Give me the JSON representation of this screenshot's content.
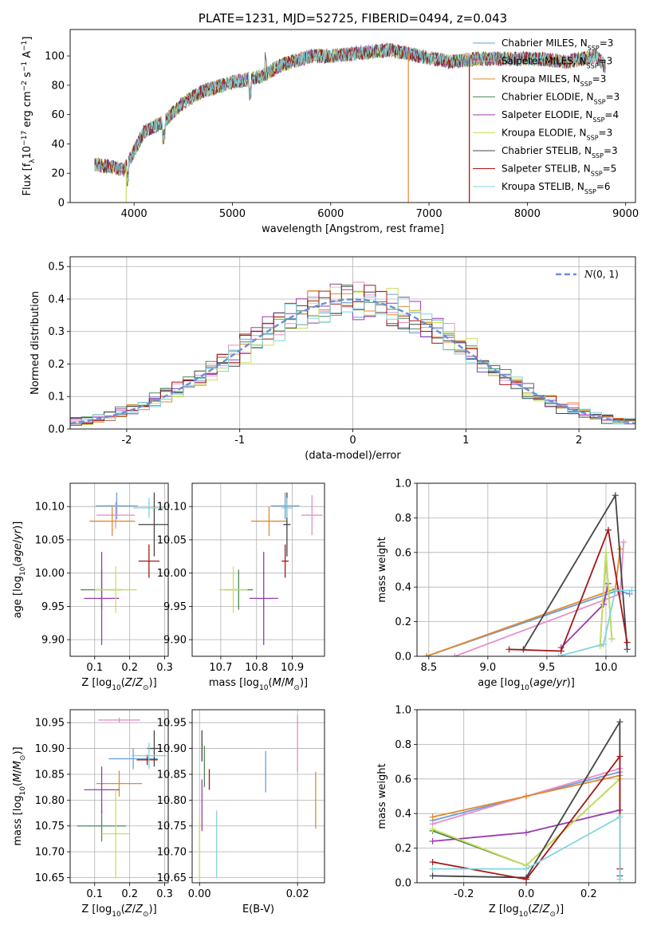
{
  "colors": [
    "#6a9cdc",
    "#e88fc7",
    "#e08a2e",
    "#4f8a55",
    "#9b39b0",
    "#c8e05a",
    "#444444",
    "#a31818",
    "#7fd5dd"
  ],
  "chart_data": [
    {
      "id": "spectrum",
      "type": "line",
      "title": "PLATE=1231, MJD=52725, FIBERID=0494, z=0.043",
      "xlabel": "wavelength [Angstrom, rest frame]",
      "ylabel": "Flux [f",
      "xlim": [
        3350,
        9100
      ],
      "ylim": [
        0,
        118
      ],
      "xticks": [
        4000,
        5000,
        6000,
        7000,
        8000,
        9000
      ],
      "yticks": [
        0,
        20,
        40,
        60,
        80,
        100
      ],
      "legend": "top-right",
      "series": [
        {
          "name": "Chabrier MILES, N",
          "ssp": "3"
        },
        {
          "name": "Salpeter MILES, N",
          "ssp": "3"
        },
        {
          "name": "Kroupa MILES, N",
          "ssp": "3"
        },
        {
          "name": "Chabrier ELODIE, N",
          "ssp": "3"
        },
        {
          "name": "Salpeter ELODIE, N",
          "ssp": "4"
        },
        {
          "name": "Kroupa ELODIE, N",
          "ssp": "3"
        },
        {
          "name": "Chabrier STELIB, N",
          "ssp": "3"
        },
        {
          "name": "Salpeter STELIB, N",
          "ssp": "5"
        },
        {
          "name": "Kroupa STELIB, N",
          "ssp": "6"
        }
      ],
      "continuum": {
        "x": [
          3600,
          3800,
          3900,
          4000,
          4100,
          4300,
          4500,
          4700,
          5000,
          5300,
          5500,
          5800,
          6000,
          6300,
          6600,
          6900,
          7200,
          7500,
          7800,
          8100,
          8400,
          8700,
          8800
        ],
        "y": [
          26,
          24,
          22,
          35,
          48,
          55,
          68,
          76,
          82,
          86,
          94,
          100,
          100,
          102,
          104,
          100,
          96,
          98,
          98,
          98,
          96,
          100,
          92
        ]
      },
      "line_drops": [
        {
          "series": 5,
          "x": 3920,
          "ymin": 0
        },
        {
          "series": 2,
          "x": 6790,
          "ymin": 0
        },
        {
          "series": 2,
          "x": 7410,
          "ymin": 0
        },
        {
          "series": 7,
          "x": 7410,
          "ymin": 0
        }
      ]
    },
    {
      "id": "residuals",
      "type": "histogram",
      "xlabel": "(data-model)/error",
      "ylabel": "Normed distribution",
      "xlim": [
        -2.5,
        2.5
      ],
      "ylim": [
        0,
        0.53
      ],
      "xticks": [
        -2,
        -1,
        0,
        1,
        2
      ],
      "yticks": [
        0.0,
        0.1,
        0.2,
        0.3,
        0.4,
        0.5
      ],
      "grid": true,
      "legend": "top-right",
      "reference": {
        "name": "N(0,1)",
        "label": "(0, 1)",
        "mu": 0,
        "sigma": 1
      },
      "bin_width": 0.1
    },
    {
      "id": "age-vs-z",
      "type": "scatter",
      "xlabel": "Z [log",
      "ylabel": "age  [log",
      "xlim": [
        0.03,
        0.31
      ],
      "ylim": [
        9.875,
        10.135
      ],
      "xticks": [
        0.1,
        0.2,
        0.3
      ],
      "yticks": [
        9.9,
        9.95,
        10.0,
        10.05,
        10.1
      ],
      "points": [
        {
          "x": 0.163,
          "y": 10.101,
          "xerr": 0.06,
          "yerr": 0.02
        },
        {
          "x": 0.16,
          "y": 10.087,
          "xerr": 0.055,
          "yerr": 0.02
        },
        {
          "x": 0.15,
          "y": 10.078,
          "xerr": 0.065,
          "yerr": 0.022
        },
        {
          "x": 0.12,
          "y": 9.975,
          "xerr": 0.06,
          "yerr": 0.03
        },
        {
          "x": 0.12,
          "y": 9.962,
          "xerr": 0.05,
          "yerr": 0.07
        },
        {
          "x": 0.16,
          "y": 9.975,
          "xerr": 0.06,
          "yerr": 0.035
        },
        {
          "x": 0.27,
          "y": 10.073,
          "xerr": 0.045,
          "yerr": 0.048
        },
        {
          "x": 0.255,
          "y": 10.018,
          "xerr": 0.03,
          "yerr": 0.025
        },
        {
          "x": 0.255,
          "y": 10.098,
          "xerr": 0.045,
          "yerr": 0.015
        }
      ]
    },
    {
      "id": "age-vs-mass",
      "type": "scatter",
      "xlabel": "mass [log",
      "ylabel": "",
      "xlim": [
        10.62,
        10.99
      ],
      "ylim": [
        9.875,
        10.135
      ],
      "xticks": [
        10.7,
        10.8,
        10.9
      ],
      "yticks": [
        9.9,
        9.95,
        10.0,
        10.05,
        10.1
      ],
      "points": [
        {
          "x": 10.88,
          "y": 10.101,
          "xerr": 0.04,
          "yerr": 0.02
        },
        {
          "x": 10.955,
          "y": 10.087,
          "xerr": 0.03,
          "yerr": 0.03
        },
        {
          "x": 10.835,
          "y": 10.078,
          "xerr": 0.05,
          "yerr": 0.022
        },
        {
          "x": 10.75,
          "y": 9.975,
          "xerr": 0.04,
          "yerr": 0.03
        },
        {
          "x": 10.82,
          "y": 9.962,
          "xerr": 0.04,
          "yerr": 0.07
        },
        {
          "x": 10.735,
          "y": 9.975,
          "xerr": 0.04,
          "yerr": 0.035
        },
        {
          "x": 10.885,
          "y": 10.073,
          "xerr": 0.01,
          "yerr": 0.048
        },
        {
          "x": 10.88,
          "y": 10.018,
          "xerr": 0.01,
          "yerr": 0.025
        },
        {
          "x": 10.885,
          "y": 10.098,
          "xerr": 0.015,
          "yerr": 0.015
        }
      ]
    },
    {
      "id": "weight-vs-age",
      "type": "line",
      "xlabel": "age  [log",
      "ylabel": "mass weight",
      "xlim": [
        8.4,
        10.25
      ],
      "ylim": [
        0,
        1.0
      ],
      "xticks": [
        8.5,
        9.0,
        9.5,
        10.0
      ],
      "yticks": [
        0.0,
        0.2,
        0.4,
        0.6,
        0.8,
        1.0
      ],
      "grid": true,
      "series": [
        {
          "x": [
            8.48,
            10.1,
            10.2
          ],
          "y": [
            0.0,
            0.38,
            0.36
          ]
        },
        {
          "x": [
            8.72,
            10.12,
            10.15
          ],
          "y": [
            0.0,
            0.36,
            0.66
          ]
        },
        {
          "x": [
            8.48,
            10.08,
            10.12
          ],
          "y": [
            0.0,
            0.39,
            0.62
          ]
        },
        {
          "x": [
            9.95,
            10.0,
            10.05
          ],
          "y": [
            0.06,
            0.6,
            0.1
          ]
        },
        {
          "x": [
            9.62,
            9.98,
            10.02
          ],
          "y": [
            0.05,
            0.3,
            0.42
          ]
        },
        {
          "x": [
            9.95,
            10.0,
            10.05
          ],
          "y": [
            0.06,
            0.6,
            0.1
          ]
        },
        {
          "x": [
            9.3,
            10.08,
            10.18
          ],
          "y": [
            0.04,
            0.93,
            0.04
          ]
        },
        {
          "x": [
            9.18,
            9.62,
            10.02,
            10.18
          ],
          "y": [
            0.04,
            0.03,
            0.73,
            0.08
          ]
        },
        {
          "x": [
            9.6,
            9.98,
            10.08,
            10.22
          ],
          "y": [
            0.0,
            0.07,
            0.38,
            0.38
          ]
        }
      ]
    },
    {
      "id": "mass-vs-z",
      "type": "scatter",
      "xlabel": "Z [log",
      "ylabel": "mass [log",
      "xlim": [
        0.03,
        0.31
      ],
      "ylim": [
        10.64,
        10.975
      ],
      "xticks": [
        0.1,
        0.2,
        0.3
      ],
      "yticks": [
        10.65,
        10.7,
        10.75,
        10.8,
        10.85,
        10.9,
        10.95
      ],
      "points": [
        {
          "x": 0.21,
          "y": 10.88,
          "xerr": 0.07,
          "yerr": 0.02
        },
        {
          "x": 0.17,
          "y": 10.955,
          "xerr": 0.06,
          "yerr": 0.005
        },
        {
          "x": 0.17,
          "y": 10.832,
          "xerr": 0.065,
          "yerr": 0.025
        },
        {
          "x": 0.12,
          "y": 10.75,
          "xerr": 0.07,
          "yerr": 0.03
        },
        {
          "x": 0.12,
          "y": 10.82,
          "xerr": 0.05,
          "yerr": 0.045
        },
        {
          "x": 0.16,
          "y": 10.735,
          "xerr": 0.04,
          "yerr": 0.085
        },
        {
          "x": 0.27,
          "y": 10.9,
          "xerr": 0.02,
          "yerr": 0.035
        },
        {
          "x": 0.25,
          "y": 10.878,
          "xerr": 0.03,
          "yerr": 0.01
        },
        {
          "x": 0.255,
          "y": 10.886,
          "xerr": 0.05,
          "yerr": 0.025
        }
      ]
    },
    {
      "id": "mass-vs-ebv",
      "type": "scatter",
      "xlabel": "E(B-V)",
      "ylabel": "",
      "xlim": [
        -0.0015,
        0.0255
      ],
      "ylim": [
        10.64,
        10.975
      ],
      "xticks": [
        0.0,
        0.02
      ],
      "yticks": [
        10.65,
        10.7,
        10.75,
        10.8,
        10.85,
        10.9,
        10.95
      ],
      "points": [
        {
          "x": 0.0135,
          "y": 10.855,
          "xerr": 0,
          "yerr": 0.04
        },
        {
          "x": 0.02,
          "y": 10.91,
          "xerr": 0,
          "yerr": 0.055
        },
        {
          "x": 0.0237,
          "y": 10.8,
          "xerr": 0,
          "yerr": 0.055
        },
        {
          "x": 0.001,
          "y": 10.865,
          "xerr": 0,
          "yerr": 0.04
        },
        {
          "x": 0.0005,
          "y": 10.79,
          "xerr": 0,
          "yerr": 0.05
        },
        {
          "x": 0.0,
          "y": 10.705,
          "xerr": 0,
          "yerr": 0.06
        },
        {
          "x": 0.0005,
          "y": 10.905,
          "xerr": 0,
          "yerr": 0.03
        },
        {
          "x": 0.002,
          "y": 10.84,
          "xerr": 0,
          "yerr": 0.02
        },
        {
          "x": 0.0035,
          "y": 10.715,
          "xerr": 0,
          "yerr": 0.065
        }
      ]
    },
    {
      "id": "weight-vs-z",
      "type": "line",
      "xlabel": "Z [log",
      "ylabel": "mass weight",
      "xlim": [
        -0.35,
        0.35
      ],
      "ylim": [
        0,
        1.0
      ],
      "xticks": [
        -0.2,
        0.0,
        0.2
      ],
      "yticks": [
        0.0,
        0.2,
        0.4,
        0.6,
        0.8,
        1.0
      ],
      "grid": true,
      "series": [
        {
          "x": [
            -0.3,
            0.0,
            0.3
          ],
          "y": [
            0.36,
            0.5,
            0.64
          ]
        },
        {
          "x": [
            -0.3,
            0.0,
            0.3
          ],
          "y": [
            0.34,
            0.5,
            0.66
          ]
        },
        {
          "x": [
            -0.3,
            0.0,
            0.3
          ],
          "y": [
            0.38,
            0.5,
            0.62
          ]
        },
        {
          "x": [
            -0.3,
            0.0,
            0.3
          ],
          "y": [
            0.3,
            0.1,
            0.6
          ]
        },
        {
          "x": [
            -0.3,
            0.0,
            0.3
          ],
          "y": [
            0.24,
            0.29,
            0.42
          ]
        },
        {
          "x": [
            -0.3,
            0.0,
            0.3
          ],
          "y": [
            0.31,
            0.1,
            0.6
          ]
        },
        {
          "x": [
            -0.3,
            0.0,
            0.3,
            0.3
          ],
          "y": [
            0.04,
            0.03,
            0.93,
            0.04
          ]
        },
        {
          "x": [
            -0.3,
            0.0,
            0.3,
            0.3
          ],
          "y": [
            0.12,
            0.02,
            0.73,
            0.08
          ]
        },
        {
          "x": [
            -0.3,
            0.0,
            0.3,
            0.3
          ],
          "y": [
            0.08,
            0.08,
            0.38,
            0.02
          ]
        }
      ]
    }
  ]
}
